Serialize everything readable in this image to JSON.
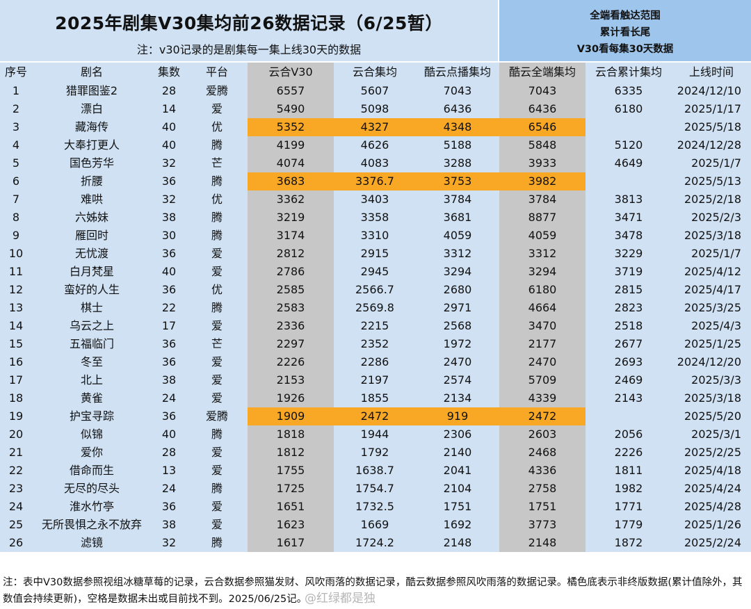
{
  "header": {
    "title": "2025年剧集V30集均前26数据记录（6/25暂）",
    "subtitle": "注：v30记录的是剧集每一集上线30天的数据",
    "side_notes": [
      "全端看触达范围",
      "累计看长尾",
      "V30看每集30天数据"
    ]
  },
  "columns": [
    "序号",
    "剧名",
    "集数",
    "平台",
    "云合V30",
    "云合集均",
    "酷云点播集均",
    "酷云全端集均",
    "云合累计集均",
    "上线时间"
  ],
  "colors": {
    "header_blue": "#cfe1f3",
    "side_blue": "#9ec5ec",
    "data_gray": "#c7c7c7",
    "highlight_orange": "#f9a825"
  },
  "rows": [
    {
      "no": "1",
      "name": "猎罪图鉴2",
      "eps": "28",
      "platform": "爱腾",
      "yh_v30": "6557",
      "yh_avg": "5607",
      "ky_vod": "7043",
      "ky_all": "7043",
      "yh_cum": "6335",
      "date": "2024/12/10",
      "highlight": false
    },
    {
      "no": "2",
      "name": "漂白",
      "eps": "14",
      "platform": "爱",
      "yh_v30": "5490",
      "yh_avg": "5098",
      "ky_vod": "6436",
      "ky_all": "6436",
      "yh_cum": "6180",
      "date": "2025/1/17",
      "highlight": false
    },
    {
      "no": "3",
      "name": "藏海传",
      "eps": "40",
      "platform": "优",
      "yh_v30": "5352",
      "yh_avg": "4327",
      "ky_vod": "4348",
      "ky_all": "6546",
      "yh_cum": "",
      "date": "2025/5/18",
      "highlight": true
    },
    {
      "no": "4",
      "name": "大奉打更人",
      "eps": "40",
      "platform": "腾",
      "yh_v30": "4199",
      "yh_avg": "4626",
      "ky_vod": "5188",
      "ky_all": "5848",
      "yh_cum": "5120",
      "date": "2024/12/28",
      "highlight": false
    },
    {
      "no": "5",
      "name": "国色芳华",
      "eps": "32",
      "platform": "芒",
      "yh_v30": "4074",
      "yh_avg": "4083",
      "ky_vod": "3288",
      "ky_all": "3933",
      "yh_cum": "4649",
      "date": "2025/1/7",
      "highlight": false
    },
    {
      "no": "6",
      "name": "折腰",
      "eps": "36",
      "platform": "腾",
      "yh_v30": "3683",
      "yh_avg": "3376.7",
      "ky_vod": "3753",
      "ky_all": "3982",
      "yh_cum": "",
      "date": "2025/5/13",
      "highlight": true
    },
    {
      "no": "7",
      "name": "难哄",
      "eps": "32",
      "platform": "优",
      "yh_v30": "3362",
      "yh_avg": "3403",
      "ky_vod": "3784",
      "ky_all": "3784",
      "yh_cum": "3813",
      "date": "2025/2/18",
      "highlight": false
    },
    {
      "no": "8",
      "name": "六姊妹",
      "eps": "38",
      "platform": "腾",
      "yh_v30": "3219",
      "yh_avg": "3358",
      "ky_vod": "3681",
      "ky_all": "8877",
      "yh_cum": "3471",
      "date": "2025/2/3",
      "highlight": false
    },
    {
      "no": "9",
      "name": "雁回时",
      "eps": "30",
      "platform": "腾",
      "yh_v30": "3174",
      "yh_avg": "3310",
      "ky_vod": "4059",
      "ky_all": "4059",
      "yh_cum": "3478",
      "date": "2025/3/18",
      "highlight": false
    },
    {
      "no": "10",
      "name": "无忧渡",
      "eps": "36",
      "platform": "爱",
      "yh_v30": "2812",
      "yh_avg": "2915",
      "ky_vod": "3312",
      "ky_all": "3312",
      "yh_cum": "3229",
      "date": "2025/1/7",
      "highlight": false
    },
    {
      "no": "11",
      "name": "白月梵星",
      "eps": "40",
      "platform": "爱",
      "yh_v30": "2786",
      "yh_avg": "2945",
      "ky_vod": "3294",
      "ky_all": "3294",
      "yh_cum": "3719",
      "date": "2025/4/12",
      "highlight": false
    },
    {
      "no": "12",
      "name": "蛮好的人生",
      "eps": "36",
      "platform": "优",
      "yh_v30": "2585",
      "yh_avg": "2566.7",
      "ky_vod": "2680",
      "ky_all": "6180",
      "yh_cum": "2815",
      "date": "2025/4/17",
      "highlight": false
    },
    {
      "no": "13",
      "name": "棋士",
      "eps": "22",
      "platform": "腾",
      "yh_v30": "2583",
      "yh_avg": "2569.8",
      "ky_vod": "2971",
      "ky_all": "4664",
      "yh_cum": "2823",
      "date": "2025/3/25",
      "highlight": false
    },
    {
      "no": "14",
      "name": "乌云之上",
      "eps": "17",
      "platform": "爱",
      "yh_v30": "2336",
      "yh_avg": "2215",
      "ky_vod": "2568",
      "ky_all": "3470",
      "yh_cum": "2518",
      "date": "2025/4/3",
      "highlight": false
    },
    {
      "no": "15",
      "name": "五福临门",
      "eps": "36",
      "platform": "芒",
      "yh_v30": "2297",
      "yh_avg": "2352",
      "ky_vod": "1972",
      "ky_all": "2177",
      "yh_cum": "2677",
      "date": "2025/1/25",
      "highlight": false
    },
    {
      "no": "16",
      "name": "冬至",
      "eps": "36",
      "platform": "爱",
      "yh_v30": "2226",
      "yh_avg": "2286",
      "ky_vod": "2470",
      "ky_all": "2470",
      "yh_cum": "2693",
      "date": "2024/12/20",
      "highlight": false
    },
    {
      "no": "17",
      "name": "北上",
      "eps": "38",
      "platform": "爱",
      "yh_v30": "2153",
      "yh_avg": "2197",
      "ky_vod": "2574",
      "ky_all": "5709",
      "yh_cum": "2469",
      "date": "2025/3/3",
      "highlight": false
    },
    {
      "no": "18",
      "name": "黄雀",
      "eps": "24",
      "platform": "爱",
      "yh_v30": "1926",
      "yh_avg": "1855",
      "ky_vod": "2134",
      "ky_all": "4339",
      "yh_cum": "2143",
      "date": "2025/3/18",
      "highlight": false
    },
    {
      "no": "19",
      "name": "护宝寻踪",
      "eps": "36",
      "platform": "爱腾",
      "yh_v30": "1909",
      "yh_avg": "2472",
      "ky_vod": "919",
      "ky_all": "2472",
      "yh_cum": "",
      "date": "2025/5/20",
      "highlight": true
    },
    {
      "no": "20",
      "name": "似锦",
      "eps": "40",
      "platform": "腾",
      "yh_v30": "1818",
      "yh_avg": "1944",
      "ky_vod": "2306",
      "ky_all": "2603",
      "yh_cum": "2056",
      "date": "2025/3/1",
      "highlight": false
    },
    {
      "no": "21",
      "name": "爱你",
      "eps": "28",
      "platform": "爱",
      "yh_v30": "1812",
      "yh_avg": "1792",
      "ky_vod": "2140",
      "ky_all": "2468",
      "yh_cum": "2226",
      "date": "2025/2/25",
      "highlight": false
    },
    {
      "no": "22",
      "name": "借命而生",
      "eps": "13",
      "platform": "爱",
      "yh_v30": "1755",
      "yh_avg": "1638.7",
      "ky_vod": "2041",
      "ky_all": "4336",
      "yh_cum": "1811",
      "date": "2025/4/18",
      "highlight": false
    },
    {
      "no": "23",
      "name": "无尽的尽头",
      "eps": "24",
      "platform": "腾",
      "yh_v30": "1725",
      "yh_avg": "1754.7",
      "ky_vod": "2104",
      "ky_all": "2758",
      "yh_cum": "1982",
      "date": "2025/4/24",
      "highlight": false
    },
    {
      "no": "24",
      "name": "淮水竹亭",
      "eps": "36",
      "platform": "爱",
      "yh_v30": "1651",
      "yh_avg": "1732.5",
      "ky_vod": "1751",
      "ky_all": "1751",
      "yh_cum": "1771",
      "date": "2025/4/28",
      "highlight": false
    },
    {
      "no": "25",
      "name": "无所畏惧之永不放弃",
      "eps": "38",
      "platform": "爱",
      "yh_v30": "1623",
      "yh_avg": "1669",
      "ky_vod": "1692",
      "ky_all": "3773",
      "yh_cum": "1779",
      "date": "2025/1/26",
      "highlight": false
    },
    {
      "no": "26",
      "name": "滤镜",
      "eps": "32",
      "platform": "腾",
      "yh_v30": "1617",
      "yh_avg": "1724.2",
      "ky_vod": "2148",
      "ky_all": "2148",
      "yh_cum": "1872",
      "date": "2025/2/24",
      "highlight": false
    }
  ],
  "footer": {
    "note": "注：表中V30数据参照视组冰糖草莓的记录，云合数据参照猫发财、风吹雨落的数据记录，酷云数据参照风吹雨落的数据记录。橘色底表示非终版数据(累计值除外，其数值会持续更新)，空格是数据未出或目前找不到。2025/06/25记。",
    "watermark": "@红绿都是独"
  }
}
